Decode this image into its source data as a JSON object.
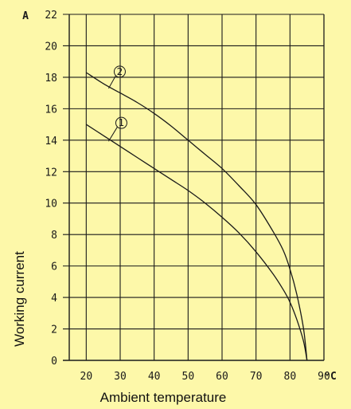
{
  "chart_data": {
    "type": "line",
    "title": "",
    "xlabel": "Ambient temperature",
    "ylabel": "Working current",
    "x_unit": "°C",
    "y_unit": "A",
    "xlim": [
      15,
      90
    ],
    "ylim": [
      0,
      22
    ],
    "x_ticks": [
      20,
      30,
      40,
      50,
      60,
      70,
      80,
      90
    ],
    "y_ticks": [
      0,
      2,
      4,
      6,
      8,
      10,
      12,
      14,
      16,
      18,
      20,
      22
    ],
    "grid": true,
    "legend": "none",
    "series": [
      {
        "marker": "1",
        "x": [
          20,
          25,
          30,
          35,
          40,
          45,
          50,
          55,
          60,
          65,
          70,
          75,
          78,
          80,
          82,
          84,
          85
        ],
        "y": [
          15.0,
          14.3,
          13.6,
          12.9,
          12.2,
          11.5,
          10.8,
          10.0,
          9.1,
          8.1,
          6.9,
          5.5,
          4.5,
          3.7,
          2.6,
          1.2,
          0
        ]
      },
      {
        "marker": "2",
        "x": [
          20,
          25,
          30,
          35,
          40,
          45,
          50,
          55,
          60,
          65,
          70,
          75,
          78,
          80,
          82,
          84,
          85
        ],
        "y": [
          18.3,
          17.6,
          17.0,
          16.4,
          15.7,
          14.9,
          14.0,
          13.1,
          12.2,
          11.1,
          9.9,
          8.2,
          7.0,
          5.8,
          4.2,
          2.0,
          0
        ]
      }
    ]
  }
}
